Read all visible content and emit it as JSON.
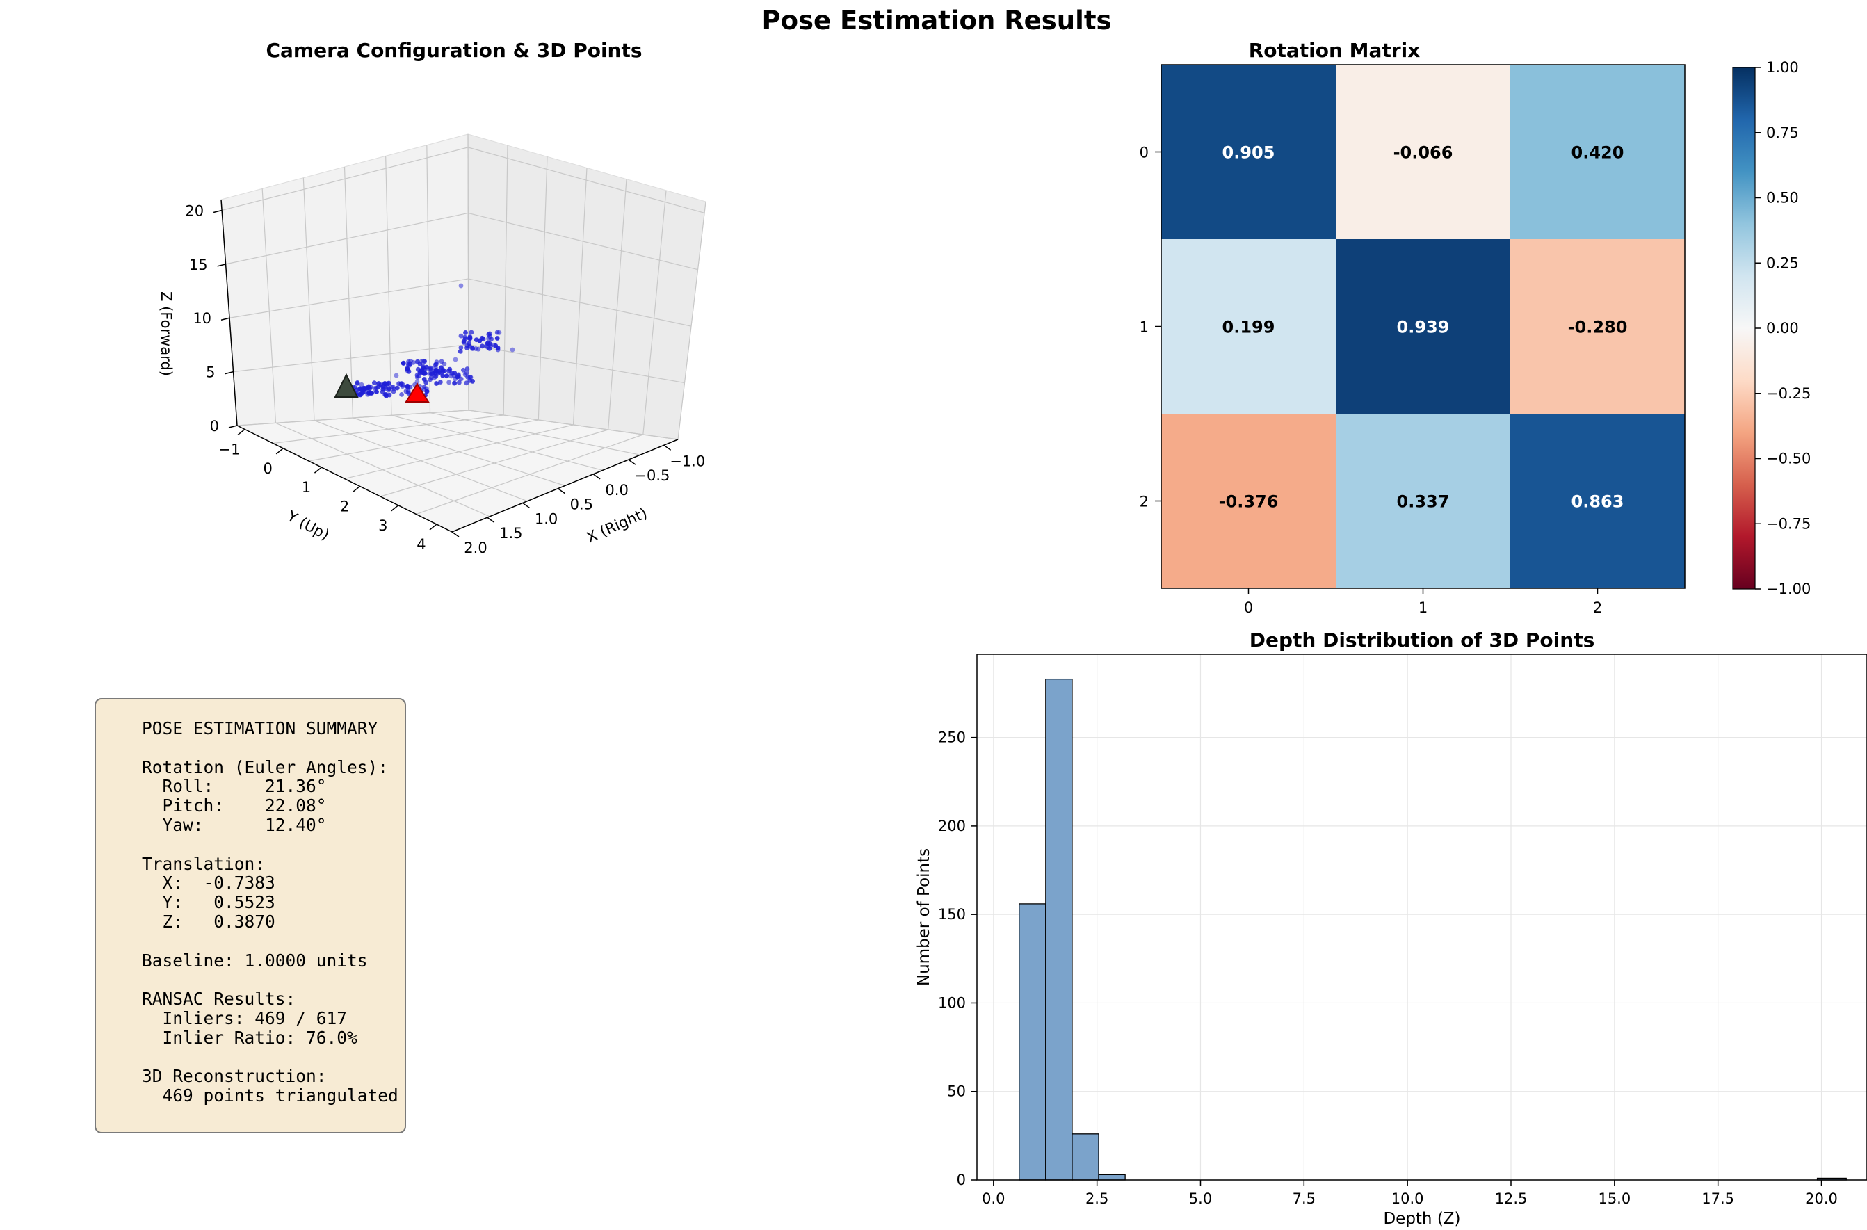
{
  "figure": {
    "title": "Pose Estimation Results"
  },
  "summary": {
    "text": "POSE ESTIMATION SUMMARY\n\nRotation (Euler Angles):\n  Roll:     21.36°\n  Pitch:    22.08°\n  Yaw:      12.40°\n\nTranslation:\n  X:  -0.7383\n  Y:   0.5523\n  Z:   0.3870\n\nBaseline: 1.0000 units\n\nRANSAC Results:\n  Inliers: 469 / 617\n  Inlier Ratio: 76.0%\n\n3D Reconstruction:\n  469 points triangulated",
    "background": "#f7ebd4"
  },
  "chart_data": [
    {
      "type": "scatter",
      "title": "Camera Configuration & 3D Points",
      "xlabel": "X (Right)",
      "ylabel": "Y (Up)",
      "zlabel": "Z (Forward)",
      "x_ticks": [
        "−1.0",
        "−0.5",
        "0.0",
        "0.5",
        "1.0",
        "1.5",
        "2.0"
      ],
      "y_ticks": [
        "−1",
        "0",
        "1",
        "2",
        "3",
        "4"
      ],
      "z_ticks": [
        "0",
        "5",
        "10",
        "15",
        "20"
      ],
      "point_color": "#1f1fd6",
      "camera1_color": "#3d4a3d",
      "camera2_color": "#ff0000",
      "xlim": [
        -1.2,
        2.0
      ],
      "ylim": [
        -1.2,
        4.4
      ],
      "zlim": [
        0,
        21
      ]
    },
    {
      "type": "heatmap",
      "title": "Rotation Matrix",
      "rows": [
        "0",
        "1",
        "2"
      ],
      "cols": [
        "0",
        "1",
        "2"
      ],
      "values": [
        [
          0.905,
          -0.066,
          0.42
        ],
        [
          0.199,
          0.939,
          -0.28
        ],
        [
          -0.376,
          0.337,
          0.863
        ]
      ],
      "labels": [
        [
          "0.905",
          "-0.066",
          "0.420"
        ],
        [
          "0.199",
          "0.939",
          "-0.280"
        ],
        [
          "-0.376",
          "0.337",
          "0.863"
        ]
      ],
      "colormap": "RdBu",
      "vmin": -1.0,
      "vmax": 1.0,
      "colorbar_ticks": [
        "1.00",
        "0.75",
        "0.50",
        "0.25",
        "0.00",
        "−0.25",
        "−0.50",
        "−0.75",
        "−1.00"
      ]
    },
    {
      "type": "bar",
      "title": "Depth Distribution of 3D Points",
      "xlabel": "Depth (Z)",
      "ylabel": "Number of Points",
      "x_ticks": [
        "0.0",
        "2.5",
        "5.0",
        "7.5",
        "10.0",
        "12.5",
        "15.0",
        "17.5",
        "20.0"
      ],
      "y_ticks": [
        "0",
        "50",
        "100",
        "150",
        "200",
        "250"
      ],
      "bins": [
        {
          "x0": 0.62,
          "x1": 1.26,
          "count": 156
        },
        {
          "x0": 1.26,
          "x1": 1.9,
          "count": 283
        },
        {
          "x0": 1.9,
          "x1": 2.54,
          "count": 26
        },
        {
          "x0": 2.54,
          "x1": 3.18,
          "count": 3
        },
        {
          "x0": 19.9,
          "x1": 20.6,
          "count": 1
        }
      ],
      "xlim": [
        -0.4,
        21.1
      ],
      "ylim": [
        0,
        297
      ],
      "bar_color": "#7ba3cb",
      "grid": true
    }
  ]
}
